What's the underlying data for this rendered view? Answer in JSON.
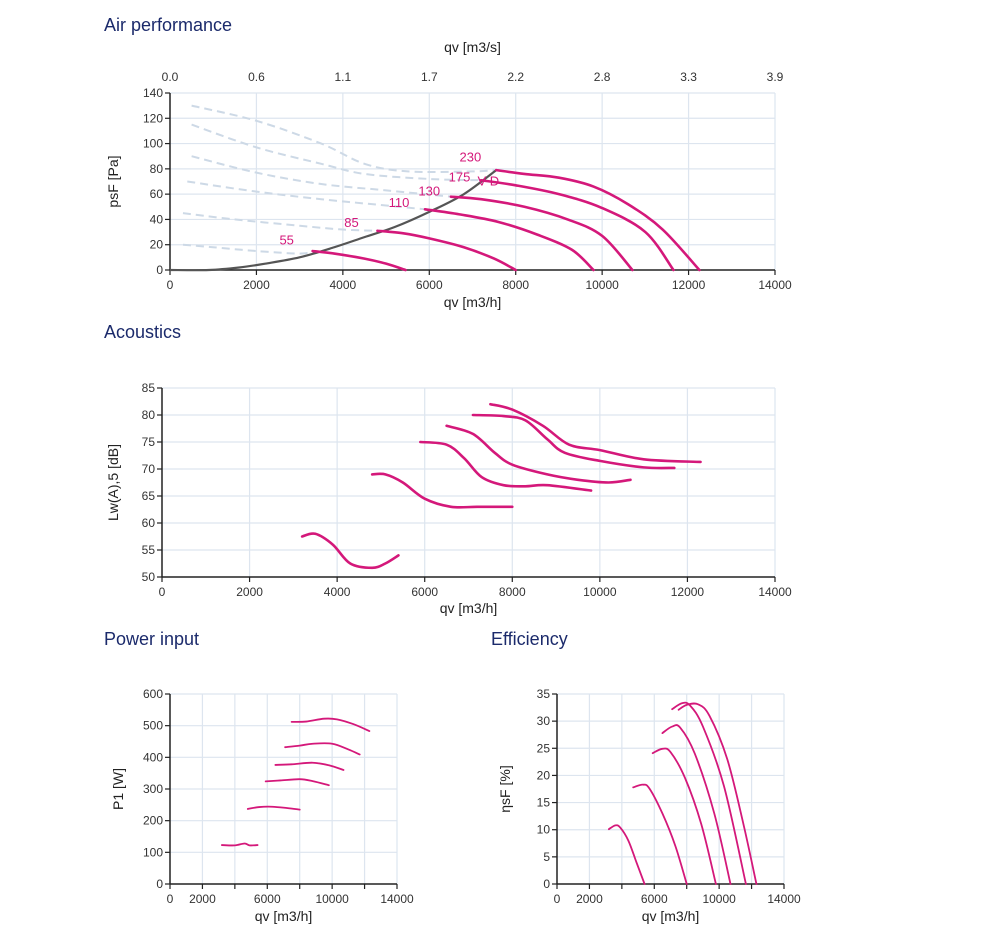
{
  "titles": {
    "air": "Air performance",
    "acoustics": "Acoustics",
    "power": "Power input",
    "efficiency": "Efficiency"
  },
  "colors": {
    "curve": "#d4187a",
    "system": "#555555",
    "dashed": "#cdd9e6",
    "grid": "#dde5ef",
    "axis": "#222222",
    "title": "#1b2a6b"
  },
  "chart_data": [
    {
      "id": "air",
      "type": "line",
      "title": "Air performance",
      "xlabel": "qv [m3/h]",
      "ylabel": "psF [Pa]",
      "x2label": "qv [m3/s]",
      "xlim": [
        0,
        14000
      ],
      "ylim": [
        0,
        140
      ],
      "xticks": [
        0,
        2000,
        4000,
        6000,
        8000,
        10000,
        12000,
        14000
      ],
      "yticks": [
        0,
        20,
        40,
        60,
        80,
        100,
        120,
        140
      ],
      "x2ticks": [
        {
          "x": 0,
          "label": "0.0"
        },
        {
          "x": 2000,
          "label": "0.6"
        },
        {
          "x": 4000,
          "label": "1.1"
        },
        {
          "x": 6000,
          "label": "1.7"
        },
        {
          "x": 8000,
          "label": "2.2"
        },
        {
          "x": 10000,
          "label": "2.8"
        },
        {
          "x": 12000,
          "label": "3.3"
        },
        {
          "x": 14000,
          "label": "3.9"
        }
      ],
      "grid": true,
      "series": [
        {
          "name": "55",
          "label_at": [
            2700,
            20
          ],
          "points": [
            [
              3300,
              15
            ],
            [
              3800,
              13
            ],
            [
              4500,
              9
            ],
            [
              5000,
              5
            ],
            [
              5450,
              0
            ]
          ]
        },
        {
          "name": "85",
          "label_at": [
            4200,
            34
          ],
          "points": [
            [
              4800,
              31
            ],
            [
              5400,
              29
            ],
            [
              6000,
              25
            ],
            [
              6800,
              18
            ],
            [
              7500,
              9
            ],
            [
              8000,
              0
            ]
          ]
        },
        {
          "name": "110",
          "label_at": [
            5300,
            50
          ],
          "points": [
            [
              5900,
              48
            ],
            [
              6700,
              44
            ],
            [
              7600,
              38
            ],
            [
              8500,
              28
            ],
            [
              9300,
              16
            ],
            [
              9800,
              0
            ]
          ]
        },
        {
          "name": "130",
          "label_at": [
            6000,
            59
          ],
          "points": [
            [
              6500,
              58
            ],
            [
              7200,
              56
            ],
            [
              8200,
              50
            ],
            [
              9200,
              40
            ],
            [
              10000,
              27
            ],
            [
              10700,
              0
            ]
          ]
        },
        {
          "name": "175",
          "label_at": [
            6700,
            70
          ],
          "points": [
            [
              7200,
              71
            ],
            [
              8000,
              67
            ],
            [
              9000,
              60
            ],
            [
              10000,
              49
            ],
            [
              11000,
              30
            ],
            [
              11650,
              0
            ]
          ]
        },
        {
          "name": "230",
          "label_at": [
            6950,
            86
          ],
          "points": [
            [
              7550,
              79
            ],
            [
              8200,
              76
            ],
            [
              9000,
              73
            ],
            [
              9800,
              66
            ],
            [
              10600,
              52
            ],
            [
              11400,
              32
            ],
            [
              12250,
              0
            ]
          ]
        }
      ],
      "system_curve": {
        "name": "V D",
        "label_at": [
          7000,
          78
        ],
        "points": [
          [
            0,
            0
          ],
          [
            900,
            0
          ],
          [
            1600,
            2
          ],
          [
            2200,
            5
          ],
          [
            3000,
            10
          ],
          [
            3800,
            18
          ],
          [
            4500,
            26
          ],
          [
            5200,
            34
          ],
          [
            6000,
            46
          ],
          [
            6800,
            60
          ],
          [
            7550,
            79
          ]
        ]
      },
      "dashed_series": [
        [
          [
            300,
            20
          ],
          [
            1000,
            18
          ],
          [
            2000,
            15
          ],
          [
            3000,
            13
          ],
          [
            3300,
            15
          ]
        ],
        [
          [
            300,
            45
          ],
          [
            1500,
            40
          ],
          [
            3000,
            35
          ],
          [
            4000,
            32
          ],
          [
            4800,
            31
          ]
        ],
        [
          [
            400,
            70
          ],
          [
            2000,
            62
          ],
          [
            3500,
            56
          ],
          [
            5000,
            51
          ],
          [
            5900,
            48
          ]
        ],
        [
          [
            500,
            90
          ],
          [
            2000,
            77
          ],
          [
            3500,
            68
          ],
          [
            5000,
            63
          ],
          [
            6500,
            58
          ]
        ],
        [
          [
            500,
            115
          ],
          [
            2000,
            97
          ],
          [
            3500,
            84
          ],
          [
            4500,
            76
          ],
          [
            6000,
            72
          ],
          [
            7200,
            71
          ]
        ],
        [
          [
            500,
            130
          ],
          [
            2000,
            118
          ],
          [
            3500,
            100
          ],
          [
            4500,
            84
          ],
          [
            5500,
            78
          ],
          [
            7000,
            78
          ],
          [
            7550,
            79
          ]
        ]
      ]
    },
    {
      "id": "acoustics",
      "type": "line",
      "title": "Acoustics",
      "xlabel": "qv [m3/h]",
      "ylabel": "Lw(A),5 [dB]",
      "xlim": [
        0,
        14000
      ],
      "ylim": [
        50,
        85
      ],
      "xticks": [
        0,
        2000,
        4000,
        6000,
        8000,
        10000,
        12000,
        14000
      ],
      "yticks": [
        50,
        55,
        60,
        65,
        70,
        75,
        80,
        85
      ],
      "grid": true,
      "series": [
        {
          "name": "55",
          "points": [
            [
              3200,
              57.5
            ],
            [
              3500,
              58
            ],
            [
              3900,
              56
            ],
            [
              4300,
              52.5
            ],
            [
              4800,
              51.7
            ],
            [
              5100,
              52.5
            ],
            [
              5400,
              54
            ]
          ]
        },
        {
          "name": "85",
          "points": [
            [
              4800,
              69
            ],
            [
              5100,
              69
            ],
            [
              5500,
              67.5
            ],
            [
              6000,
              64.5
            ],
            [
              6600,
              63
            ],
            [
              7200,
              63
            ],
            [
              8000,
              63
            ]
          ]
        },
        {
          "name": "110",
          "points": [
            [
              5900,
              75
            ],
            [
              6500,
              74.5
            ],
            [
              6900,
              72
            ],
            [
              7300,
              68.5
            ],
            [
              7800,
              67
            ],
            [
              8300,
              66.8
            ],
            [
              8800,
              67
            ],
            [
              9800,
              66
            ]
          ]
        },
        {
          "name": "130",
          "points": [
            [
              6500,
              78
            ],
            [
              7100,
              76.5
            ],
            [
              7600,
              73
            ],
            [
              8000,
              70.8
            ],
            [
              8800,
              69
            ],
            [
              9500,
              68
            ],
            [
              10200,
              67.5
            ],
            [
              10700,
              68
            ]
          ]
        },
        {
          "name": "175",
          "points": [
            [
              7100,
              80
            ],
            [
              7800,
              79.8
            ],
            [
              8300,
              79
            ],
            [
              8800,
              75.5
            ],
            [
              9200,
              73
            ],
            [
              10000,
              71.5
            ],
            [
              11000,
              70.3
            ],
            [
              11700,
              70.2
            ]
          ]
        },
        {
          "name": "230",
          "points": [
            [
              7500,
              82
            ],
            [
              8000,
              81
            ],
            [
              8700,
              78
            ],
            [
              9300,
              74.5
            ],
            [
              10000,
              73.5
            ],
            [
              11000,
              71.8
            ],
            [
              12300,
              71.3
            ]
          ]
        }
      ]
    },
    {
      "id": "power",
      "type": "line",
      "title": "Power input",
      "xlabel": "qv [m3/h]",
      "ylabel": "P1 [W]",
      "xlim": [
        0,
        14000
      ],
      "ylim": [
        0,
        600
      ],
      "xticks": [
        0,
        2000,
        4000,
        6000,
        8000,
        10000,
        12000,
        14000
      ],
      "xticklabels": [
        "0",
        "2000",
        "",
        "6000",
        "",
        "10000",
        "",
        "14000"
      ],
      "yticks": [
        0,
        100,
        200,
        300,
        400,
        500,
        600
      ],
      "grid": true,
      "series": [
        {
          "name": "55",
          "points": [
            [
              3200,
              123
            ],
            [
              4000,
              122
            ],
            [
              4600,
              128
            ],
            [
              4900,
              122
            ],
            [
              5400,
              123
            ]
          ]
        },
        {
          "name": "85",
          "points": [
            [
              4800,
              237
            ],
            [
              5500,
              243
            ],
            [
              6300,
              244
            ],
            [
              7200,
              240
            ],
            [
              8000,
              235
            ]
          ]
        },
        {
          "name": "110",
          "points": [
            [
              5900,
              324
            ],
            [
              6800,
              327
            ],
            [
              8000,
              331
            ],
            [
              8800,
              325
            ],
            [
              9800,
              312
            ]
          ]
        },
        {
          "name": "130",
          "points": [
            [
              6500,
              376
            ],
            [
              7500,
              378
            ],
            [
              8800,
              383
            ],
            [
              9800,
              375
            ],
            [
              10700,
              360
            ]
          ]
        },
        {
          "name": "175",
          "points": [
            [
              7100,
              432
            ],
            [
              8000,
              437
            ],
            [
              8800,
              443
            ],
            [
              10000,
              443
            ],
            [
              11000,
              425
            ],
            [
              11700,
              409
            ]
          ]
        },
        {
          "name": "230",
          "points": [
            [
              7500,
              512
            ],
            [
              8400,
              513
            ],
            [
              9500,
              522
            ],
            [
              10300,
              520
            ],
            [
              11300,
              505
            ],
            [
              12300,
              483
            ]
          ]
        }
      ]
    },
    {
      "id": "efficiency",
      "type": "line",
      "title": "Efficiency",
      "xlabel": "qv [m3/h]",
      "ylabel": "ηsF [%]",
      "xlim": [
        0,
        14000
      ],
      "ylim": [
        0,
        35
      ],
      "xticks": [
        0,
        2000,
        4000,
        6000,
        8000,
        10000,
        12000,
        14000
      ],
      "xticklabels": [
        "0",
        "2000",
        "",
        "6000",
        "",
        "10000",
        "",
        "14000"
      ],
      "yticks": [
        0,
        5,
        10,
        15,
        20,
        25,
        30,
        35
      ],
      "grid": true,
      "series": [
        {
          "name": "55",
          "points": [
            [
              3200,
              10.1
            ],
            [
              3600,
              10.8
            ],
            [
              3900,
              10.4
            ],
            [
              4400,
              8
            ],
            [
              4900,
              4
            ],
            [
              5400,
              0
            ]
          ]
        },
        {
          "name": "85",
          "points": [
            [
              4700,
              17.8
            ],
            [
              5300,
              18.3
            ],
            [
              5700,
              17.6
            ],
            [
              6500,
              13
            ],
            [
              7300,
              7
            ],
            [
              8000,
              0
            ]
          ]
        },
        {
          "name": "110",
          "points": [
            [
              5900,
              24.1
            ],
            [
              6500,
              24.9
            ],
            [
              7000,
              24.3
            ],
            [
              7900,
              19.5
            ],
            [
              8900,
              11
            ],
            [
              9800,
              0
            ]
          ]
        },
        {
          "name": "130",
          "points": [
            [
              6500,
              27.8
            ],
            [
              7100,
              29
            ],
            [
              7600,
              28.8
            ],
            [
              8500,
              24
            ],
            [
              9700,
              13
            ],
            [
              10700,
              0
            ]
          ]
        },
        {
          "name": "175",
          "points": [
            [
              7100,
              32.2
            ],
            [
              7700,
              33.3
            ],
            [
              8200,
              32.9
            ],
            [
              9000,
              29
            ],
            [
              10300,
              18
            ],
            [
              11650,
              0
            ]
          ]
        },
        {
          "name": "230",
          "points": [
            [
              7500,
              32.1
            ],
            [
              8000,
              33
            ],
            [
              8700,
              33.1
            ],
            [
              9400,
              31
            ],
            [
              10500,
              23
            ],
            [
              11500,
              11
            ],
            [
              12300,
              0
            ]
          ]
        }
      ]
    }
  ]
}
